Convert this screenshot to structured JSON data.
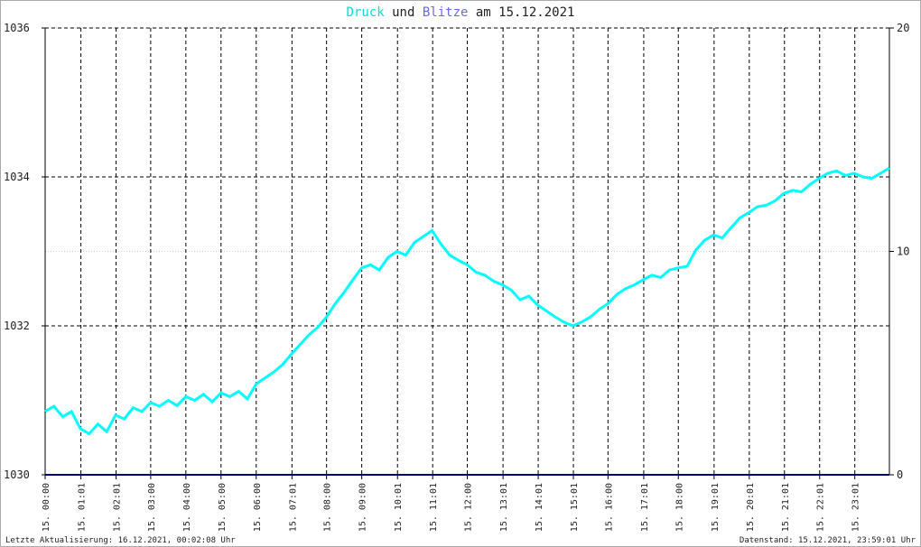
{
  "chart_data": {
    "type": "line",
    "title_joiner": "und",
    "title_suffix": "am 15.12.2021",
    "footer_left": "Letzte Aktualisierung: 16.12.2021, 00:02:08 Uhr",
    "footer_right": "Datenstand: 15.12.2021, 23:59:01 Uhr",
    "xlim": [
      0,
      24
    ],
    "xticks": [
      {
        "value": 0,
        "label": "15. 00:00"
      },
      {
        "value": 1.0167,
        "label": "15. 01:01"
      },
      {
        "value": 2.0167,
        "label": "15. 02:01"
      },
      {
        "value": 3,
        "label": "15. 03:00"
      },
      {
        "value": 4,
        "label": "15. 04:00"
      },
      {
        "value": 5,
        "label": "15. 05:00"
      },
      {
        "value": 6,
        "label": "15. 06:00"
      },
      {
        "value": 7.0167,
        "label": "15. 07:01"
      },
      {
        "value": 8,
        "label": "15. 08:00"
      },
      {
        "value": 9,
        "label": "15. 09:00"
      },
      {
        "value": 10.0167,
        "label": "15. 10:01"
      },
      {
        "value": 11.0167,
        "label": "15. 11:01"
      },
      {
        "value": 12,
        "label": "15. 12:00"
      },
      {
        "value": 13.0167,
        "label": "15. 13:01"
      },
      {
        "value": 14.0167,
        "label": "15. 14:01"
      },
      {
        "value": 15.0167,
        "label": "15. 15:01"
      },
      {
        "value": 16,
        "label": "15. 16:00"
      },
      {
        "value": 17.0167,
        "label": "15. 17:01"
      },
      {
        "value": 18,
        "label": "15. 18:00"
      },
      {
        "value": 19.0167,
        "label": "15. 19:01"
      },
      {
        "value": 20.0167,
        "label": "15. 20:01"
      },
      {
        "value": 21.0167,
        "label": "15. 21:01"
      },
      {
        "value": 22.0167,
        "label": "15. 22:01"
      },
      {
        "value": 23.0167,
        "label": "15. 23:01"
      }
    ],
    "ylim": [
      1030,
      1036
    ],
    "yticks": [
      1030,
      1032,
      1034,
      1036
    ],
    "y2lim": [
      0,
      20
    ],
    "y2ticks": [
      0,
      10,
      20
    ],
    "grid": true,
    "series": [
      {
        "name": "Druck",
        "color": "#00ffff",
        "x": [
          0,
          0.25,
          0.5,
          0.75,
          1,
          1.25,
          1.5,
          1.75,
          2,
          2.25,
          2.5,
          2.75,
          3,
          3.25,
          3.5,
          3.75,
          4,
          4.25,
          4.5,
          4.75,
          5,
          5.25,
          5.5,
          5.75,
          6,
          6.25,
          6.5,
          6.75,
          7,
          7.25,
          7.5,
          7.75,
          8,
          8.25,
          8.5,
          8.75,
          9,
          9.25,
          9.5,
          9.75,
          10,
          10.25,
          10.5,
          10.75,
          11,
          11.25,
          11.5,
          11.75,
          12,
          12.25,
          12.5,
          12.75,
          13,
          13.25,
          13.5,
          13.75,
          14,
          14.25,
          14.5,
          14.75,
          15,
          15.25,
          15.5,
          15.75,
          16,
          16.25,
          16.5,
          16.75,
          17,
          17.25,
          17.5,
          17.75,
          18,
          18.25,
          18.5,
          18.75,
          19,
          19.25,
          19.5,
          19.75,
          20,
          20.25,
          20.5,
          20.75,
          21,
          21.25,
          21.5,
          21.75,
          22,
          22.25,
          22.5,
          22.75,
          23,
          23.25,
          23.5,
          23.75,
          24
        ],
        "values": [
          1030.85,
          1030.92,
          1030.78,
          1030.85,
          1030.62,
          1030.55,
          1030.68,
          1030.58,
          1030.8,
          1030.75,
          1030.9,
          1030.85,
          1030.97,
          1030.92,
          1031.0,
          1030.93,
          1031.05,
          1031.0,
          1031.08,
          1030.98,
          1031.1,
          1031.05,
          1031.12,
          1031.02,
          1031.22,
          1031.3,
          1031.38,
          1031.48,
          1031.62,
          1031.75,
          1031.88,
          1031.98,
          1032.12,
          1032.3,
          1032.45,
          1032.62,
          1032.78,
          1032.82,
          1032.75,
          1032.92,
          1033.0,
          1032.95,
          1033.12,
          1033.2,
          1033.28,
          1033.1,
          1032.95,
          1032.88,
          1032.82,
          1032.72,
          1032.68,
          1032.6,
          1032.55,
          1032.48,
          1032.35,
          1032.4,
          1032.28,
          1032.2,
          1032.12,
          1032.05,
          1032.0,
          1032.05,
          1032.12,
          1032.22,
          1032.3,
          1032.42,
          1032.5,
          1032.55,
          1032.62,
          1032.68,
          1032.65,
          1032.75,
          1032.78,
          1032.8,
          1033.02,
          1033.15,
          1033.22,
          1033.18,
          1033.32,
          1033.45,
          1033.52,
          1033.6,
          1033.62,
          1033.68,
          1033.78,
          1033.82,
          1033.8,
          1033.9,
          1033.98,
          1034.05,
          1034.08,
          1034.02,
          1034.05,
          1034.0,
          1033.98,
          1034.05,
          1034.12
        ]
      },
      {
        "name": "Blitze",
        "color": "#000080",
        "axis": "y2",
        "x": [
          0,
          24
        ],
        "values": [
          0,
          0
        ]
      }
    ]
  }
}
